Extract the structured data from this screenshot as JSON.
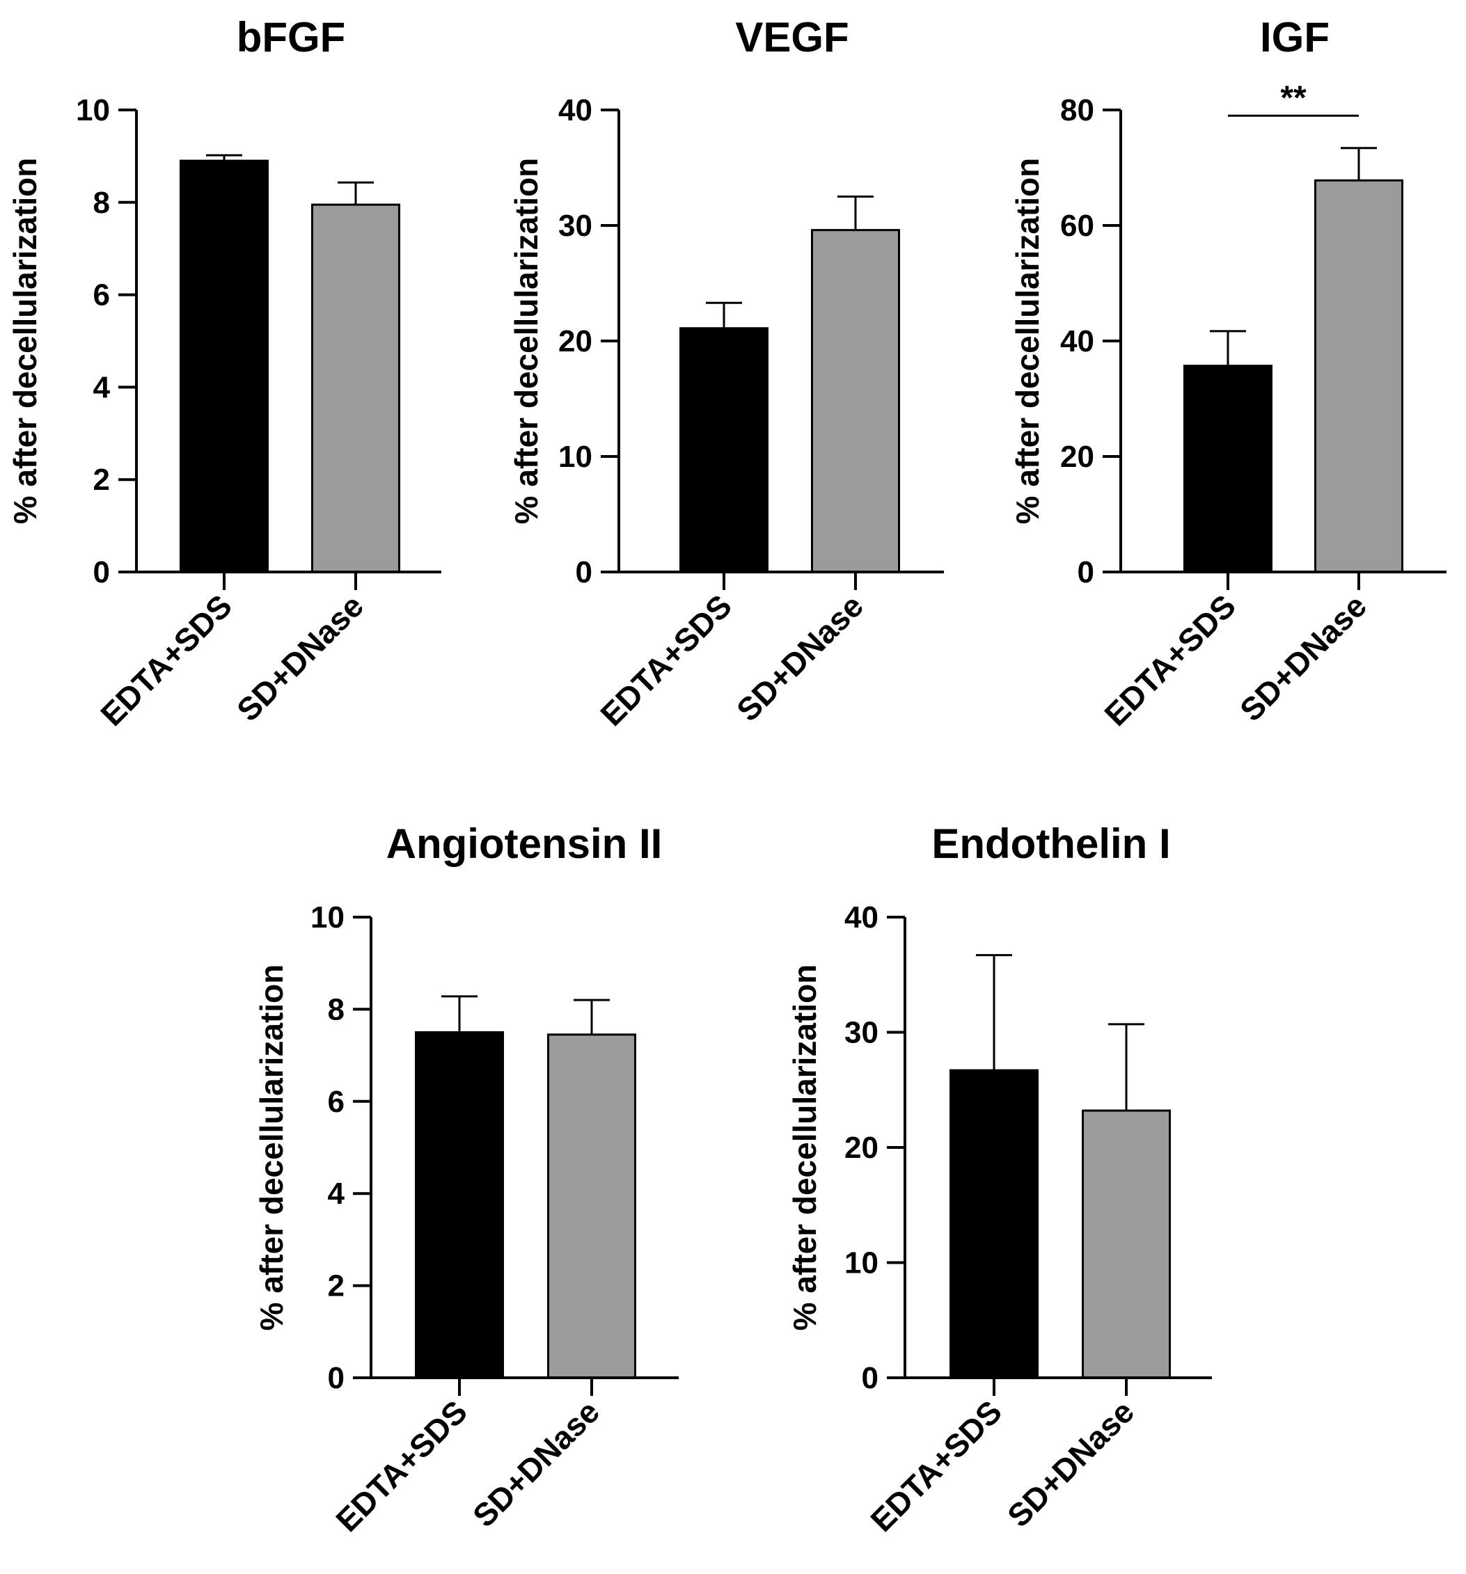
{
  "figure": {
    "panels": 5
  },
  "chart_data": [
    {
      "type": "bar",
      "title": "bFGF",
      "xlabel": "",
      "ylabel": "% after decellularization",
      "categories": [
        "EDTA+SDS",
        "SD+DNase"
      ],
      "values": [
        8.9,
        7.95
      ],
      "errors": [
        0.12,
        0.48
      ],
      "colors": [
        "#000000",
        "#9b9b9b"
      ],
      "ylim": [
        0,
        10
      ],
      "yticks": [
        0,
        2,
        4,
        6,
        8,
        10
      ],
      "tick_labels": [
        "0",
        "2",
        "4",
        "6",
        "8",
        "10"
      ],
      "significance": null
    },
    {
      "type": "bar",
      "title": "VEGF",
      "xlabel": "",
      "ylabel": "% after decellularization",
      "categories": [
        "EDTA+SDS",
        "SD+DNase"
      ],
      "values": [
        21.1,
        29.6
      ],
      "errors": [
        2.2,
        2.9
      ],
      "colors": [
        "#000000",
        "#9b9b9b"
      ],
      "ylim": [
        0,
        40
      ],
      "yticks": [
        0,
        10,
        20,
        30,
        40
      ],
      "tick_labels": [
        "0",
        "10",
        "20",
        "30",
        "40"
      ],
      "significance": null
    },
    {
      "type": "bar",
      "title": "IGF",
      "xlabel": "",
      "ylabel": "% after decellularization",
      "categories": [
        "EDTA+SDS",
        "SD+DNase"
      ],
      "values": [
        35.7,
        67.8
      ],
      "errors": [
        6.0,
        5.6
      ],
      "colors": [
        "#000000",
        "#9b9b9b"
      ],
      "ylim": [
        0,
        80
      ],
      "yticks": [
        0,
        20,
        40,
        60,
        80
      ],
      "tick_labels": [
        "0",
        "20",
        "40",
        "60",
        "80"
      ],
      "significance": {
        "label": "**",
        "between": [
          0,
          1
        ],
        "value": 79
      }
    },
    {
      "type": "bar",
      "title": "Angiotensin II",
      "xlabel": "",
      "ylabel": "% after decellularization",
      "categories": [
        "EDTA+SDS",
        "SD+DNase"
      ],
      "values": [
        7.5,
        7.45
      ],
      "errors": [
        0.78,
        0.75
      ],
      "colors": [
        "#000000",
        "#9b9b9b"
      ],
      "ylim": [
        0,
        10
      ],
      "yticks": [
        0,
        2,
        4,
        6,
        8,
        10
      ],
      "tick_labels": [
        "0",
        "2",
        "4",
        "6",
        "8",
        "10"
      ],
      "significance": null
    },
    {
      "type": "bar",
      "title": "Endothelin I",
      "xlabel": "",
      "ylabel": "% after decellularization",
      "categories": [
        "EDTA+SDS",
        "SD+DNase"
      ],
      "values": [
        26.7,
        23.2
      ],
      "errors": [
        10.0,
        7.5
      ],
      "colors": [
        "#000000",
        "#9b9b9b"
      ],
      "ylim": [
        0,
        40
      ],
      "yticks": [
        0,
        10,
        20,
        30,
        40
      ],
      "tick_labels": [
        "0",
        "10",
        "20",
        "30",
        "40"
      ],
      "significance": null
    }
  ]
}
